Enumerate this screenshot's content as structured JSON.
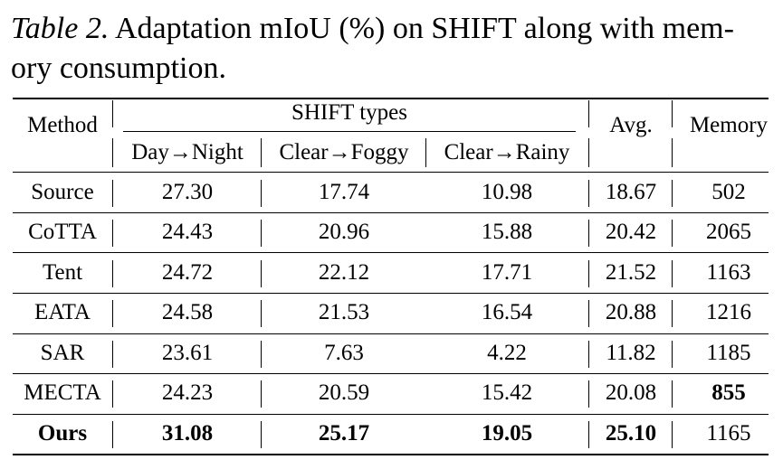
{
  "caption": {
    "label": "Table 2.",
    "line1": "Adaptation mIoU (%) on SHIFT along with mem-",
    "line2": "ory consumption."
  },
  "header": {
    "method": "Method",
    "group": "SHIFT types",
    "types": [
      "Day→Night",
      "Clear→Foggy",
      "Clear→Rainy"
    ],
    "avg": "Avg.",
    "memory": "Memory"
  },
  "rows": [
    {
      "method": "Source",
      "values": [
        "27.30",
        "17.74",
        "10.98",
        "18.67",
        "502"
      ],
      "bold": [
        false,
        false,
        false,
        false,
        false,
        false
      ]
    },
    {
      "method": "CoTTA",
      "values": [
        "24.43",
        "20.96",
        "15.88",
        "20.42",
        "2065"
      ],
      "bold": [
        false,
        false,
        false,
        false,
        false,
        false
      ]
    },
    {
      "method": "Tent",
      "values": [
        "24.72",
        "22.12",
        "17.71",
        "21.52",
        "1163"
      ],
      "bold": [
        false,
        false,
        false,
        false,
        false,
        false
      ]
    },
    {
      "method": "EATA",
      "values": [
        "24.58",
        "21.53",
        "16.54",
        "20.88",
        "1216"
      ],
      "bold": [
        false,
        false,
        false,
        false,
        false,
        false
      ]
    },
    {
      "method": "SAR",
      "values": [
        "23.61",
        "7.63",
        "4.22",
        "11.82",
        "1185"
      ],
      "bold": [
        false,
        false,
        false,
        false,
        false,
        false
      ]
    },
    {
      "method": "MECTA",
      "values": [
        "24.23",
        "20.59",
        "15.42",
        "20.08",
        "855"
      ],
      "bold": [
        false,
        false,
        false,
        false,
        false,
        true
      ]
    },
    {
      "method": "Ours",
      "values": [
        "31.08",
        "25.17",
        "19.05",
        "25.10",
        "1165"
      ],
      "bold": [
        true,
        true,
        true,
        true,
        true,
        false
      ]
    }
  ]
}
